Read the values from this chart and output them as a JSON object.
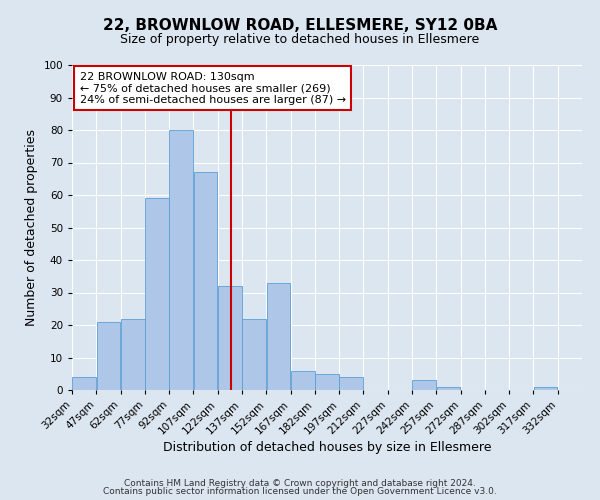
{
  "title": "22, BROWNLOW ROAD, ELLESMERE, SY12 0BA",
  "subtitle": "Size of property relative to detached houses in Ellesmere",
  "xlabel": "Distribution of detached houses by size in Ellesmere",
  "ylabel": "Number of detached properties",
  "bin_edges": [
    32,
    47,
    62,
    77,
    92,
    107,
    122,
    137,
    152,
    167,
    182,
    197,
    212,
    227,
    242,
    257,
    272,
    287,
    302,
    317,
    332,
    347
  ],
  "bin_labels": [
    "32sqm",
    "47sqm",
    "62sqm",
    "77sqm",
    "92sqm",
    "107sqm",
    "122sqm",
    "137sqm",
    "152sqm",
    "167sqm",
    "182sqm",
    "197sqm",
    "212sqm",
    "227sqm",
    "242sqm",
    "257sqm",
    "272sqm",
    "287sqm",
    "302sqm",
    "317sqm",
    "332sqm"
  ],
  "bar_heights": [
    4,
    21,
    22,
    59,
    80,
    67,
    32,
    22,
    33,
    6,
    5,
    4,
    0,
    0,
    3,
    1,
    0,
    0,
    0,
    1,
    0
  ],
  "bar_color": "#aec6e8",
  "bar_edge_color": "#5a9fd4",
  "vline_x": 130,
  "vline_color": "#cc0000",
  "ylim": [
    0,
    100
  ],
  "annotation_line1": "22 BROWNLOW ROAD: 130sqm",
  "annotation_line2": "← 75% of detached houses are smaller (269)",
  "annotation_line3": "24% of semi-detached houses are larger (87) →",
  "annotation_box_color": "#ffffff",
  "annotation_box_edge": "#cc0000",
  "footer1": "Contains HM Land Registry data © Crown copyright and database right 2024.",
  "footer2": "Contains public sector information licensed under the Open Government Licence v3.0.",
  "background_color": "#dce6f0",
  "plot_background": "#dce6f0",
  "grid_color": "#ffffff",
  "title_fontsize": 11,
  "subtitle_fontsize": 9,
  "axis_label_fontsize": 9,
  "tick_fontsize": 7.5
}
